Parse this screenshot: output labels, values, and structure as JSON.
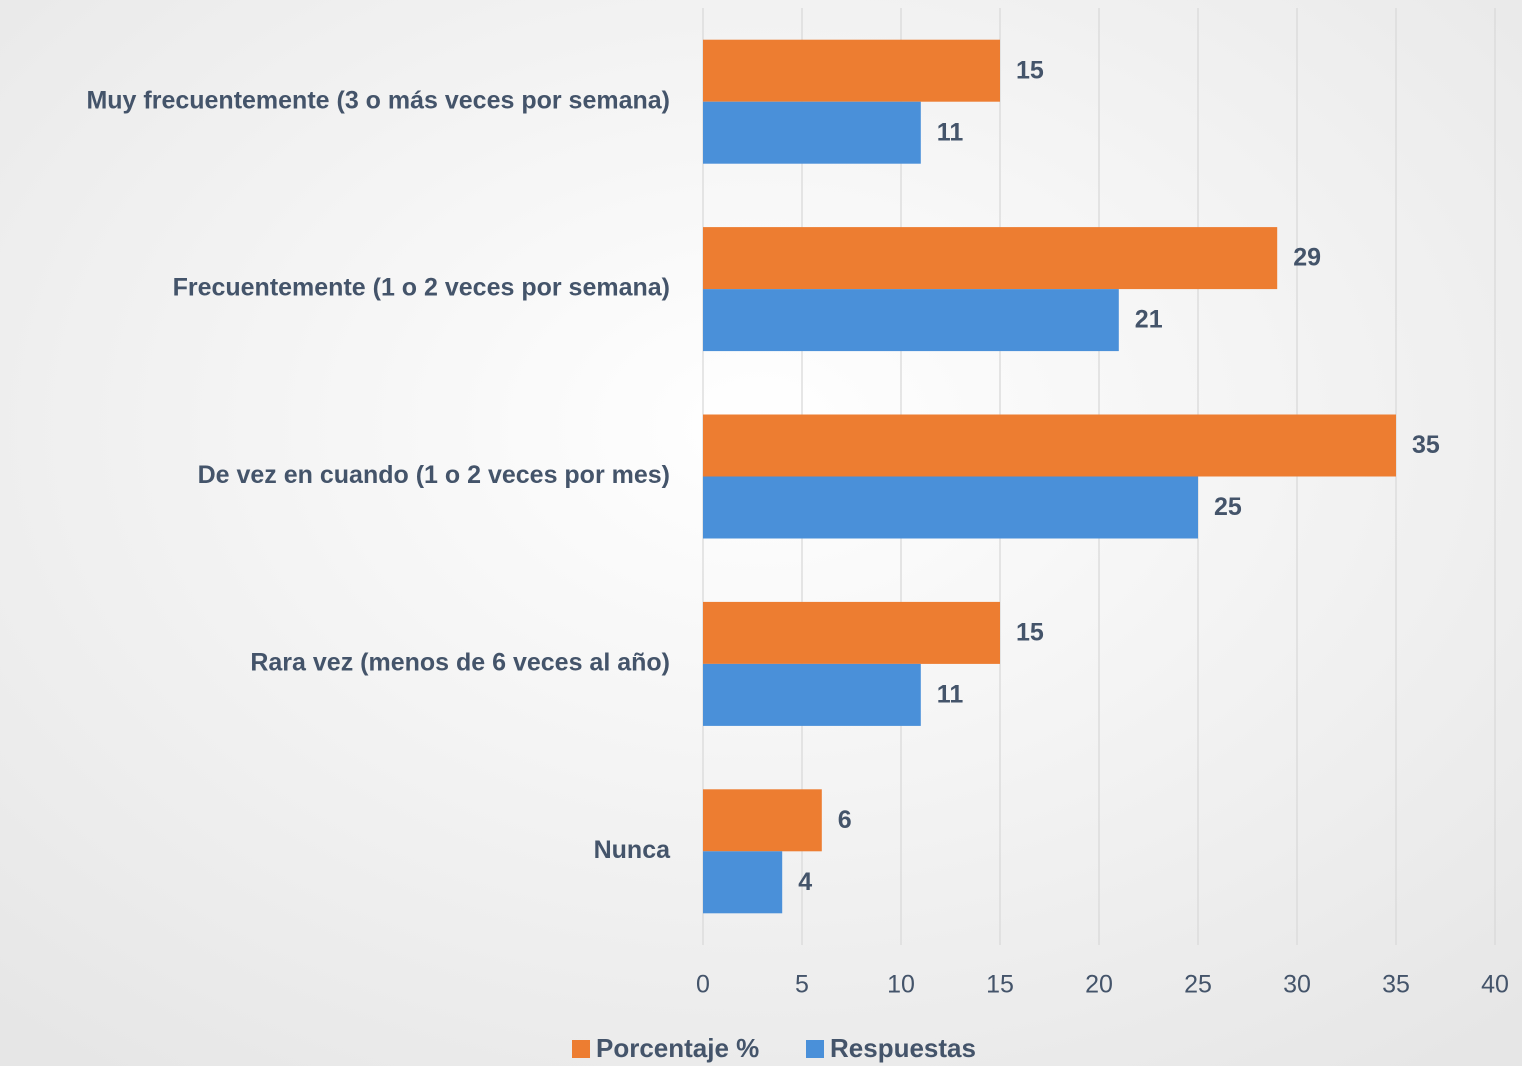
{
  "chart_data": {
    "type": "barh",
    "categories": [
      "Muy frecuentemente (3 o más veces por semana)",
      "Frecuentemente (1 o 2 veces por semana)",
      "De vez en cuando (1 o 2 veces por mes)",
      "Rara vez (menos de 6 veces al año)",
      "Nunca"
    ],
    "series": [
      {
        "name": "Porcentaje %",
        "color": "#ed7d31",
        "values": [
          15,
          29,
          35,
          15,
          6
        ]
      },
      {
        "name": "Respuestas",
        "color": "#4a90d9",
        "values": [
          11,
          21,
          25,
          11,
          4
        ]
      }
    ],
    "xlim": [
      0,
      40
    ],
    "xticks": [
      0,
      5,
      10,
      15,
      20,
      25,
      30,
      35,
      40
    ],
    "grid": true,
    "legend": "bottom"
  }
}
